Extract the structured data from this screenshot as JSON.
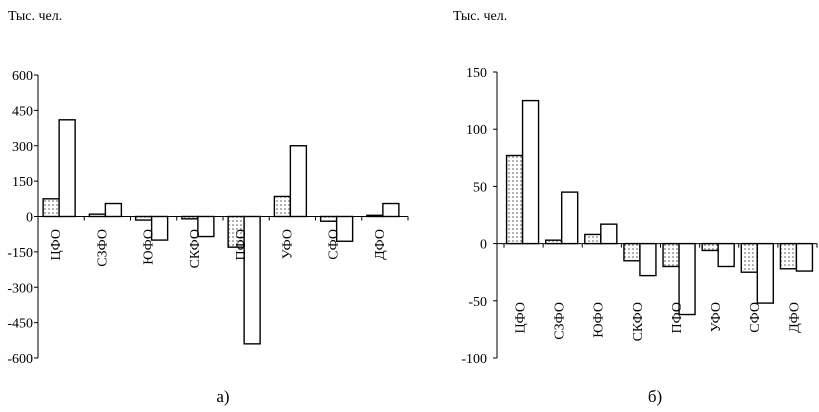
{
  "chart_data": [
    {
      "type": "bar",
      "unit_label": "Тыс. чел.",
      "caption": "а)",
      "categories": [
        "ЦФО",
        "СЗФО",
        "ЮФО",
        "СКФО",
        "ПФО",
        "УФО",
        "СФО",
        "ДФО"
      ],
      "series": [
        {
          "pattern": "dotted",
          "values": [
            75,
            10,
            -15,
            -10,
            -130,
            85,
            -20,
            5
          ]
        },
        {
          "pattern": "blank",
          "values": [
            410,
            55,
            -100,
            -85,
            -540,
            300,
            -105,
            55
          ]
        }
      ],
      "ylim": [
        -600,
        600
      ],
      "yticks": [
        "600",
        "450",
        "300",
        "150",
        "0",
        "-150",
        "-300",
        "-450",
        "-600"
      ]
    },
    {
      "type": "bar",
      "unit_label": "Тыс. чел.",
      "caption": "б)",
      "categories": [
        "ЦФО",
        "СЗФО",
        "ЮФО",
        "СКФО",
        "ПФО",
        "УФО",
        "СФО",
        "ДФО"
      ],
      "series": [
        {
          "pattern": "dotted",
          "values": [
            77,
            3,
            8,
            -15,
            -20,
            -6,
            -25,
            -22
          ]
        },
        {
          "pattern": "blank",
          "values": [
            125,
            45,
            17,
            -28,
            -62,
            -20,
            -52,
            -24
          ]
        }
      ],
      "ylim": [
        -100,
        150
      ],
      "yticks": [
        "150",
        "100",
        "50",
        "0",
        "-50",
        "-100"
      ]
    }
  ]
}
